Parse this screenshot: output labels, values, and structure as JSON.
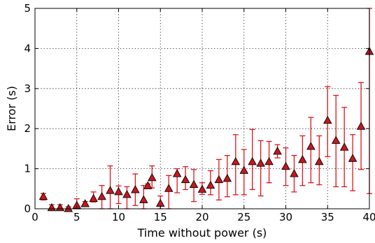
{
  "chart_data": {
    "type": "scatter",
    "title": "",
    "xlabel": "Time without power (s)",
    "ylabel": "Error (s)",
    "xlim": [
      0,
      40
    ],
    "ylim": [
      0,
      5
    ],
    "xticks": [
      0,
      5,
      10,
      15,
      20,
      25,
      30,
      35,
      40
    ],
    "yticks": [
      0,
      1,
      2,
      3,
      4,
      5
    ],
    "grid": true,
    "marker": "triangle",
    "marker_color": "#c8171c",
    "errorbar_color": "#e0141b",
    "series": [
      {
        "x": [
          1,
          2,
          3,
          4,
          5,
          6,
          7,
          8,
          9,
          10,
          11,
          12,
          13,
          13.5,
          14,
          15,
          16,
          17,
          18,
          19,
          20,
          21,
          22,
          23,
          24,
          25,
          26,
          27,
          28,
          29,
          30,
          31,
          32,
          33,
          34,
          35,
          36,
          37,
          38,
          39,
          40
        ],
        "y": [
          0.3,
          0.02,
          0.02,
          0.0,
          0.08,
          0.12,
          0.25,
          0.3,
          0.45,
          0.42,
          0.35,
          0.47,
          0.22,
          0.57,
          0.77,
          0.13,
          0.5,
          0.87,
          0.72,
          0.6,
          0.48,
          0.58,
          0.72,
          0.75,
          1.17,
          0.95,
          1.17,
          1.13,
          1.17,
          1.43,
          1.05,
          0.87,
          1.22,
          1.55,
          1.17,
          2.2,
          1.7,
          1.53,
          1.25,
          2.05,
          3.92
        ],
        "err_low": [
          0.22,
          0.0,
          0.0,
          0.0,
          0.0,
          0.08,
          0.17,
          0.0,
          0.0,
          0.13,
          0.0,
          0.08,
          0.0,
          0.5,
          0.52,
          0.0,
          0.0,
          0.4,
          0.48,
          0.18,
          0.36,
          0.35,
          0.22,
          0.3,
          0.35,
          0.35,
          0.48,
          0.32,
          0.65,
          1.27,
          0.58,
          0.42,
          0.58,
          0.65,
          0.6,
          1.3,
          0.55,
          0.55,
          0.45,
          0.98,
          0.38
        ],
        "err_high": [
          0.38,
          0.1,
          0.1,
          0.05,
          0.25,
          0.18,
          0.42,
          0.58,
          1.07,
          0.57,
          0.55,
          0.87,
          0.58,
          0.62,
          1.07,
          0.32,
          0.83,
          1.0,
          1.05,
          0.98,
          0.65,
          0.95,
          1.23,
          1.33,
          1.85,
          1.48,
          1.98,
          1.7,
          1.68,
          1.6,
          1.52,
          1.33,
          1.82,
          2.28,
          1.82,
          3.05,
          2.83,
          2.53,
          1.85,
          3.15,
          5.0
        ]
      }
    ]
  }
}
